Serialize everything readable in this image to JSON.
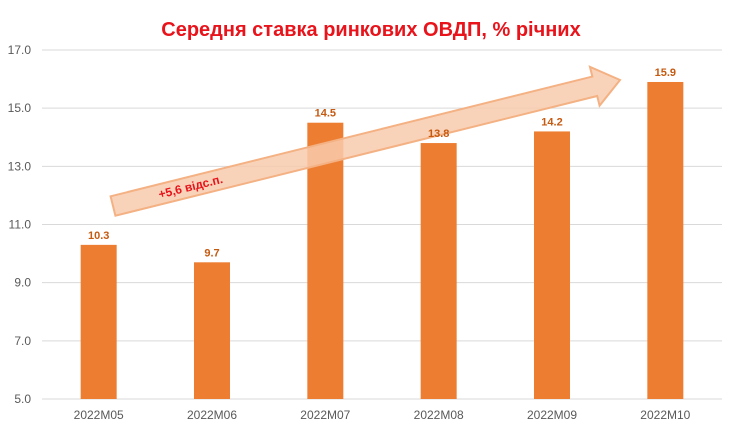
{
  "chart_data": {
    "type": "bar",
    "title": "Середня ставка ринкових ОВДП, % річних",
    "categories": [
      "2022M05",
      "2022M06",
      "2022M07",
      "2022M08",
      "2022M09",
      "2022M10"
    ],
    "values": [
      10.3,
      9.7,
      14.5,
      13.8,
      14.2,
      15.9
    ],
    "data_labels": [
      "10.3",
      "9.7",
      "14.5",
      "13.8",
      "14.2",
      "15.9"
    ],
    "y_ticks": [
      "5.0",
      "7.0",
      "9.0",
      "11.0",
      "13.0",
      "15.0",
      "17.0"
    ],
    "ylim": [
      5,
      17
    ],
    "xlabel": "",
    "ylabel": "",
    "grid": true,
    "legend": "none",
    "annotation": "+5,6 відс.п.",
    "colors": {
      "bar": "#ed7d31",
      "title": "#e8131b",
      "data_label": "#c55a11",
      "arrow_fill": "#f8cbad",
      "arrow_stroke": "#f4b183"
    }
  }
}
